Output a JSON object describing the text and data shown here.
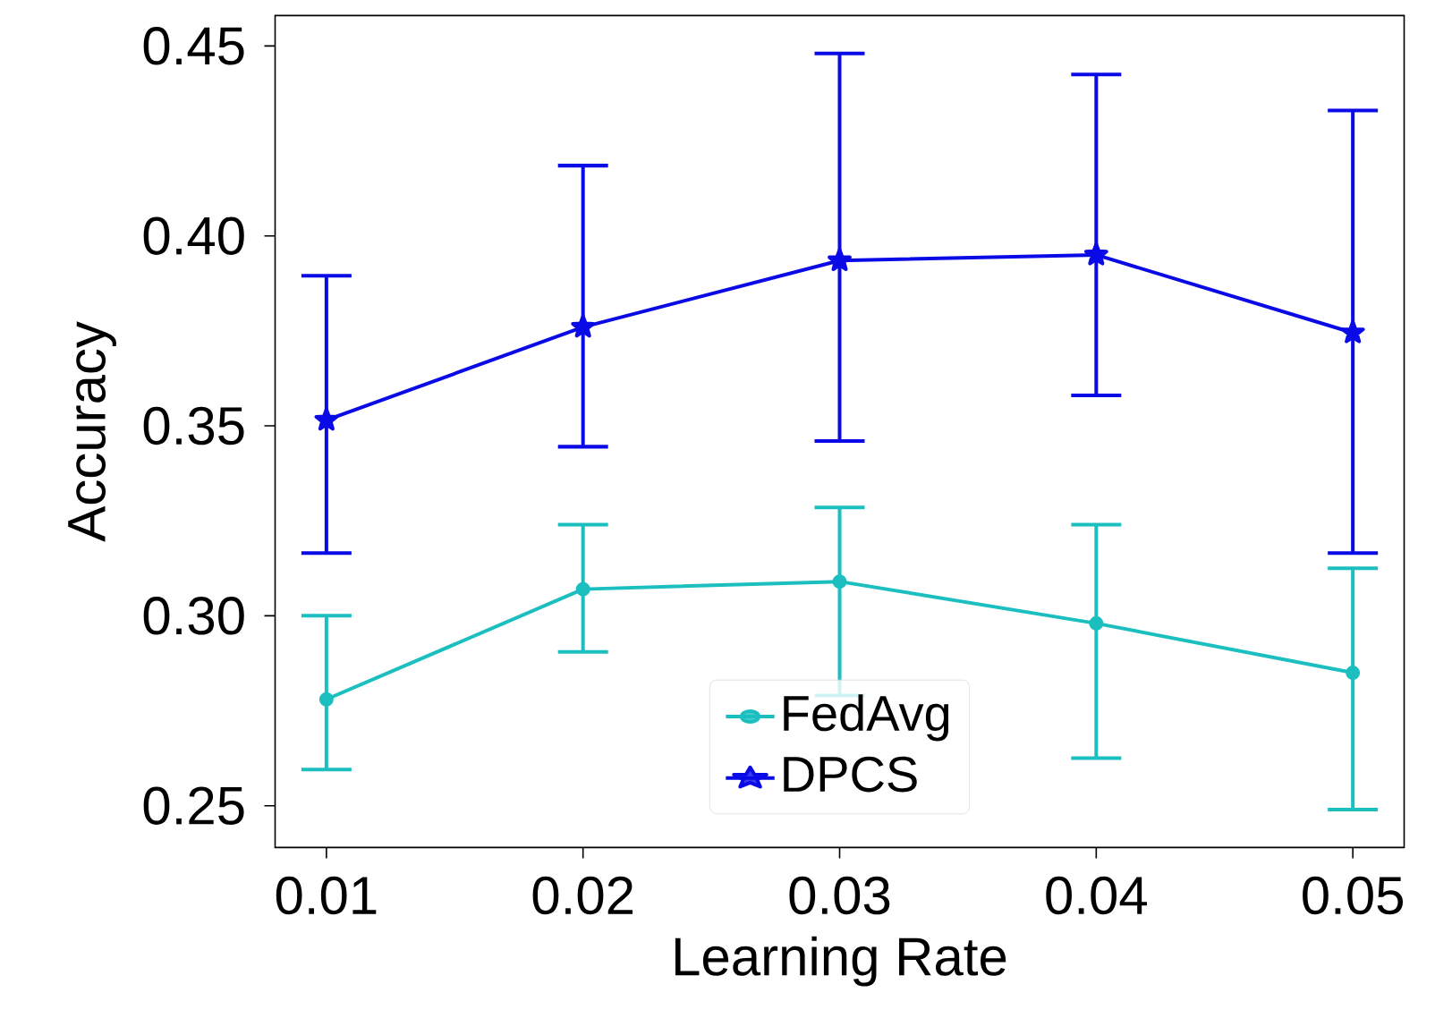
{
  "chart_data": {
    "type": "line",
    "xlabel": "Learning Rate",
    "ylabel": "Accuracy",
    "x": [
      0.01,
      0.02,
      0.03,
      0.04,
      0.05
    ],
    "series": [
      {
        "name": "FedAvg",
        "color": "#1cbfbf",
        "marker": "circle",
        "values": [
          0.278,
          0.307,
          0.309,
          0.298,
          0.285
        ],
        "errors": [
          [
            0.2595,
            0.3
          ],
          [
            0.2905,
            0.324
          ],
          [
            0.279,
            0.3285
          ],
          [
            0.2625,
            0.324
          ],
          [
            0.249,
            0.3125
          ]
        ]
      },
      {
        "name": "DPCS",
        "color": "#0a0ae6",
        "marker": "star",
        "values": [
          0.3515,
          0.376,
          0.3935,
          0.395,
          0.3745
        ],
        "errors": [
          [
            0.3165,
            0.3895
          ],
          [
            0.3445,
            0.4185
          ],
          [
            0.346,
            0.448
          ],
          [
            0.358,
            0.4425
          ],
          [
            0.3165,
            0.433
          ]
        ]
      }
    ],
    "xlim": [
      0.008,
      0.052
    ],
    "ylim": [
      0.239,
      0.458
    ],
    "xticks": [
      0.01,
      0.02,
      0.03,
      0.04,
      0.05
    ],
    "yticks": [
      0.25,
      {
        "value": 0.3,
        "label": "0.30"
      },
      0.35,
      {
        "value": 0.4,
        "label": "0.40"
      },
      0.45
    ],
    "legend": "bottom",
    "grid": false,
    "line_style": "solid"
  }
}
